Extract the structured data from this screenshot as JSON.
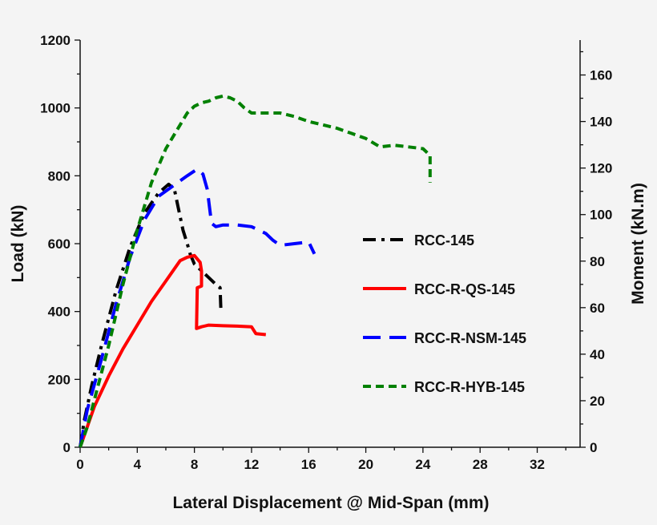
{
  "chart_data": {
    "type": "line",
    "xlabel": "Lateral Displacement @ Mid-Span (mm)",
    "ylabel": "Load (kN)",
    "y2label": "Moment (kN.m)",
    "xlim": [
      0,
      35
    ],
    "ylim": [
      0,
      1200
    ],
    "y2lim": [
      0,
      175
    ],
    "xticks": [
      "0",
      "4",
      "8",
      "12",
      "16",
      "20",
      "24",
      "28",
      "32"
    ],
    "yticks": [
      "0",
      "200",
      "400",
      "600",
      "800",
      "1000",
      "1200"
    ],
    "y2ticks": [
      "0",
      "20",
      "40",
      "60",
      "80",
      "100",
      "120",
      "140",
      "160"
    ],
    "grid": false,
    "legend_position": "right-center",
    "series": [
      {
        "name": "RCC-145",
        "color": "#000000",
        "dash": "dash-dot",
        "points": [
          [
            0,
            0
          ],
          [
            0.3,
            80
          ],
          [
            0.8,
            180
          ],
          [
            1.5,
            300
          ],
          [
            2.5,
            460
          ],
          [
            3.5,
            590
          ],
          [
            4.5,
            690
          ],
          [
            5.5,
            750
          ],
          [
            6.2,
            775
          ],
          [
            6.6,
            760
          ],
          [
            6.8,
            720
          ],
          [
            7.0,
            680
          ],
          [
            7.2,
            640
          ],
          [
            7.5,
            600
          ],
          [
            7.7,
            570
          ],
          [
            8.0,
            540
          ],
          [
            9.0,
            500
          ],
          [
            9.5,
            480
          ],
          [
            9.8,
            470
          ],
          [
            9.85,
            410
          ]
        ]
      },
      {
        "name": "RCC-R-QS-145",
        "color": "#ff0000",
        "dash": "solid",
        "points": [
          [
            0,
            0
          ],
          [
            0.5,
            60
          ],
          [
            1.0,
            120
          ],
          [
            2.0,
            210
          ],
          [
            3.0,
            290
          ],
          [
            4.0,
            360
          ],
          [
            5.0,
            430
          ],
          [
            6.0,
            490
          ],
          [
            7.0,
            550
          ],
          [
            7.5,
            560
          ],
          [
            8.0,
            565
          ],
          [
            8.4,
            545
          ],
          [
            8.5,
            520
          ],
          [
            8.5,
            475
          ],
          [
            8.2,
            470
          ],
          [
            8.15,
            350
          ],
          [
            8.5,
            355
          ],
          [
            9.0,
            360
          ],
          [
            10,
            358
          ],
          [
            11,
            357
          ],
          [
            12,
            355
          ],
          [
            12.3,
            335
          ],
          [
            13.0,
            332
          ]
        ]
      },
      {
        "name": "RCC-R-NSM-145",
        "color": "#0000ff",
        "dash": "dash",
        "points": [
          [
            0,
            0
          ],
          [
            0.5,
            110
          ],
          [
            1.5,
            260
          ],
          [
            2.5,
            420
          ],
          [
            3.5,
            560
          ],
          [
            4.5,
            670
          ],
          [
            5.5,
            740
          ],
          [
            6.5,
            770
          ],
          [
            7.5,
            800
          ],
          [
            8.2,
            820
          ],
          [
            8.6,
            805
          ],
          [
            8.9,
            760
          ],
          [
            9.2,
            660
          ],
          [
            9.5,
            650
          ],
          [
            10,
            655
          ],
          [
            11,
            655
          ],
          [
            12,
            650
          ],
          [
            13,
            630
          ],
          [
            13.5,
            610
          ],
          [
            14,
            595
          ],
          [
            15,
            600
          ],
          [
            16,
            605
          ],
          [
            16.4,
            570
          ]
        ]
      },
      {
        "name": "RCC-R-HYB-145",
        "color": "#008000",
        "dash": "short-dash",
        "points": [
          [
            0,
            0
          ],
          [
            0.5,
            60
          ],
          [
            1,
            140
          ],
          [
            2,
            300
          ],
          [
            3,
            480
          ],
          [
            4,
            640
          ],
          [
            5,
            780
          ],
          [
            6,
            880
          ],
          [
            7,
            950
          ],
          [
            7.5,
            985
          ],
          [
            8,
            1005
          ],
          [
            8.5,
            1015
          ],
          [
            9,
            1020
          ],
          [
            9.5,
            1030
          ],
          [
            10,
            1035
          ],
          [
            10.5,
            1030
          ],
          [
            11,
            1020
          ],
          [
            11.5,
            1000
          ],
          [
            12,
            985
          ],
          [
            12.5,
            985
          ],
          [
            13,
            985
          ],
          [
            14,
            985
          ],
          [
            15,
            975
          ],
          [
            16,
            960
          ],
          [
            17,
            950
          ],
          [
            18,
            940
          ],
          [
            19,
            925
          ],
          [
            20,
            910
          ],
          [
            21,
            885
          ],
          [
            22,
            890
          ],
          [
            23,
            885
          ],
          [
            24,
            880
          ],
          [
            24.5,
            860
          ],
          [
            24.5,
            780
          ]
        ]
      }
    ]
  }
}
